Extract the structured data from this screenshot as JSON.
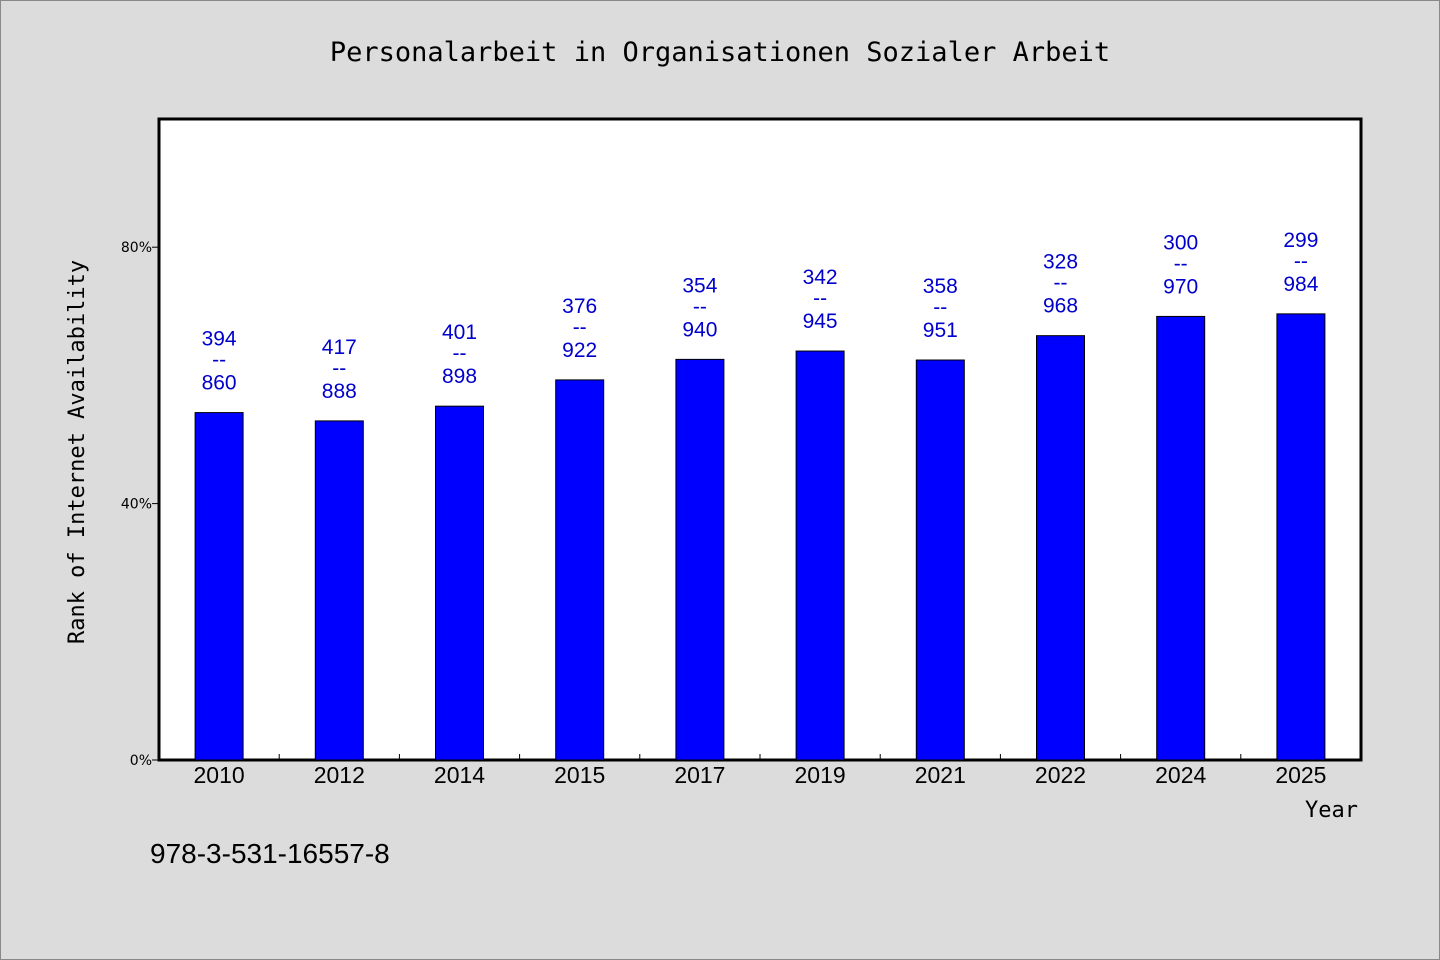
{
  "chart_data": {
    "type": "bar",
    "title": "Personalarbeit in Organisationen Sozialer Arbeit",
    "xlabel": "Year",
    "ylabel": "Rank of Internet Availability",
    "ylim": [
      0,
      100
    ],
    "yticks": [
      0,
      40,
      80
    ],
    "ytick_labels": [
      "0%",
      "40%",
      "80%"
    ],
    "grid": false,
    "categories": [
      "2010",
      "2012",
      "2014",
      "2015",
      "2017",
      "2019",
      "2021",
      "2022",
      "2024",
      "2025"
    ],
    "values": [
      54.2,
      52.9,
      55.2,
      59.3,
      62.5,
      63.8,
      62.4,
      66.2,
      69.2,
      69.6
    ],
    "labels_top": [
      "394",
      "417",
      "401",
      "376",
      "354",
      "342",
      "358",
      "328",
      "300",
      "299"
    ],
    "labels_bottom": [
      "860",
      "888",
      "898",
      "922",
      "940",
      "945",
      "951",
      "968",
      "970",
      "984"
    ],
    "label_separator": "--",
    "bar_color": "#0000ff",
    "label_color": "#0000cc"
  },
  "footer": "978-3-531-16557-8"
}
